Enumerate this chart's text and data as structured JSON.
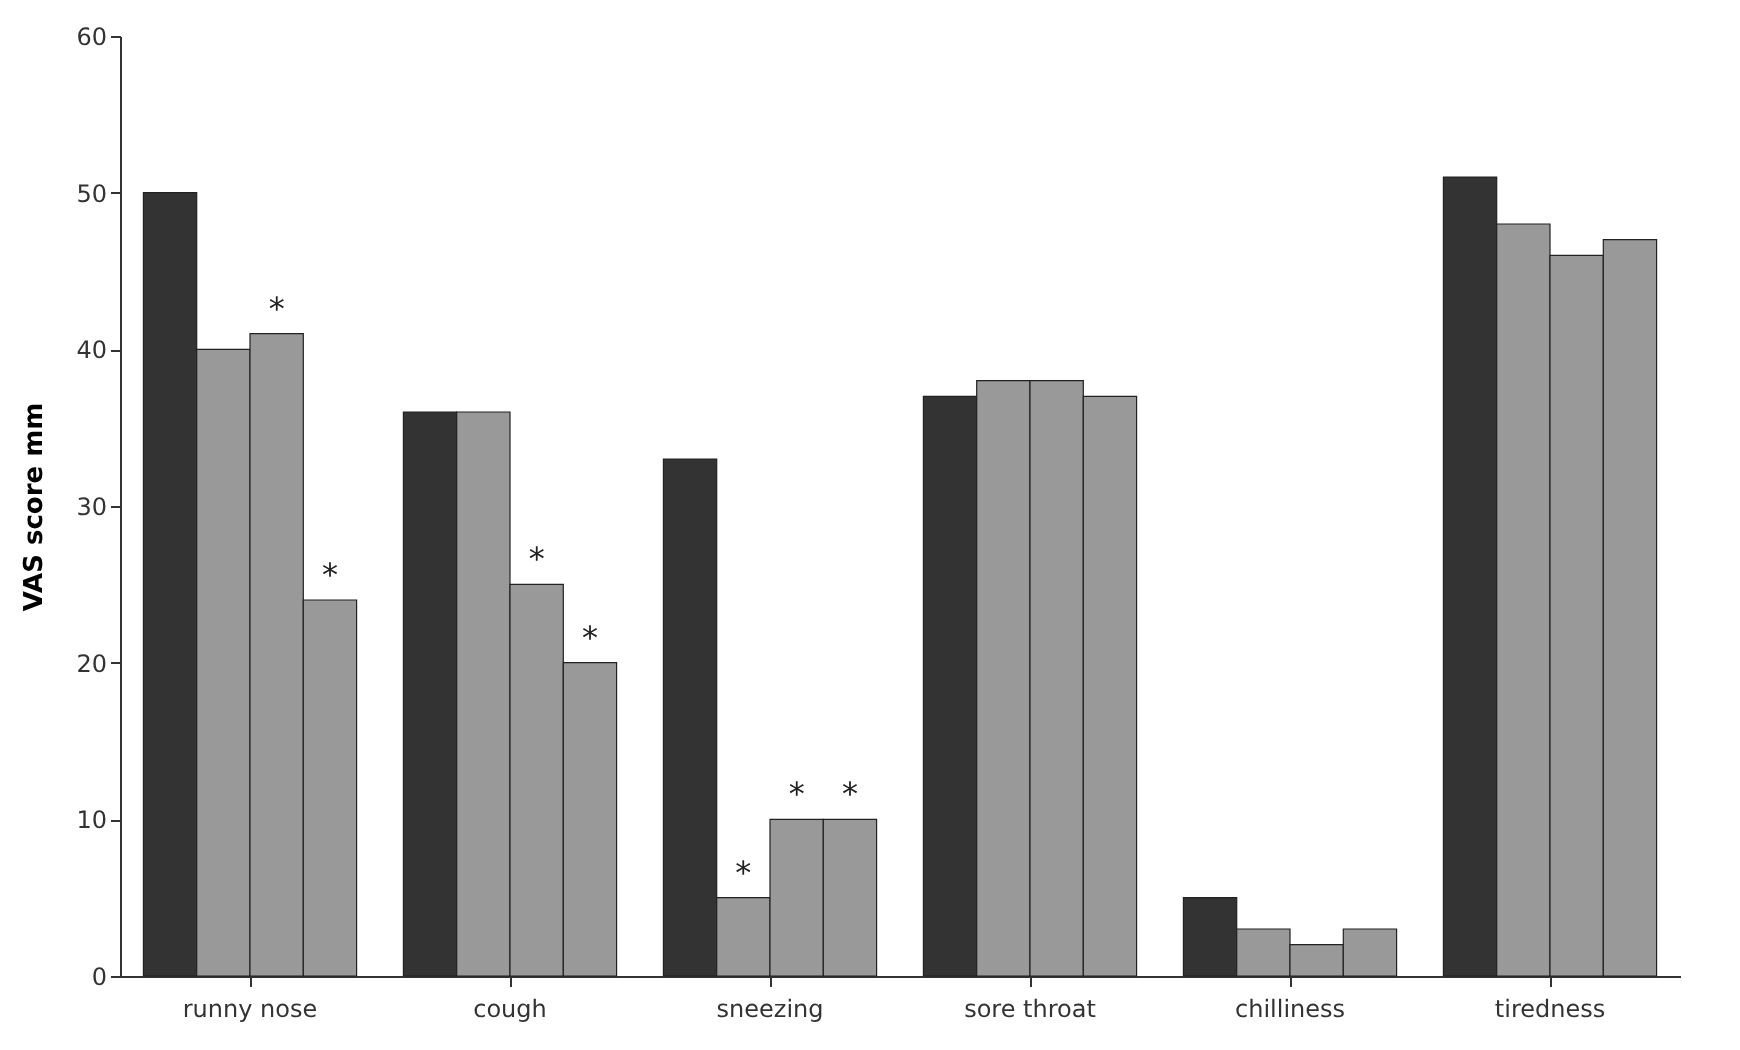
{
  "chart_data": {
    "type": "bar",
    "ylabel": "VAS score mm",
    "categories": [
      "runny nose",
      "cough",
      "sneezing",
      "sore throat",
      "chilliness",
      "tiredness"
    ],
    "series": [
      {
        "color": "#333333",
        "values": [
          50,
          36,
          33,
          37,
          5,
          51
        ]
      },
      {
        "color": "#999999",
        "values": [
          40,
          36,
          5,
          38,
          3,
          48
        ]
      },
      {
        "color": "#999999",
        "values": [
          41,
          25,
          10,
          38,
          2,
          46
        ]
      },
      {
        "color": "#999999",
        "values": [
          24,
          20,
          10,
          37,
          3,
          47
        ]
      }
    ],
    "ylim": [
      0,
      60
    ],
    "yticks": [
      0,
      10,
      20,
      30,
      40,
      50,
      60
    ],
    "grid": false,
    "legend": false,
    "annotations": [
      {
        "text": "*",
        "x": "runny nose",
        "y": 41
      },
      {
        "text": "*",
        "x": "runny nose",
        "y": 24
      },
      {
        "text": "*",
        "x": "cough",
        "y": 25
      },
      {
        "text": "*",
        "x": "cough",
        "y": 20
      },
      {
        "text": "*",
        "x": "sneezing",
        "y": 5
      },
      {
        "text": "*",
        "x": "sneezing",
        "y": 10
      },
      {
        "text": "*",
        "x": "sneezing",
        "y": 10
      }
    ]
  }
}
